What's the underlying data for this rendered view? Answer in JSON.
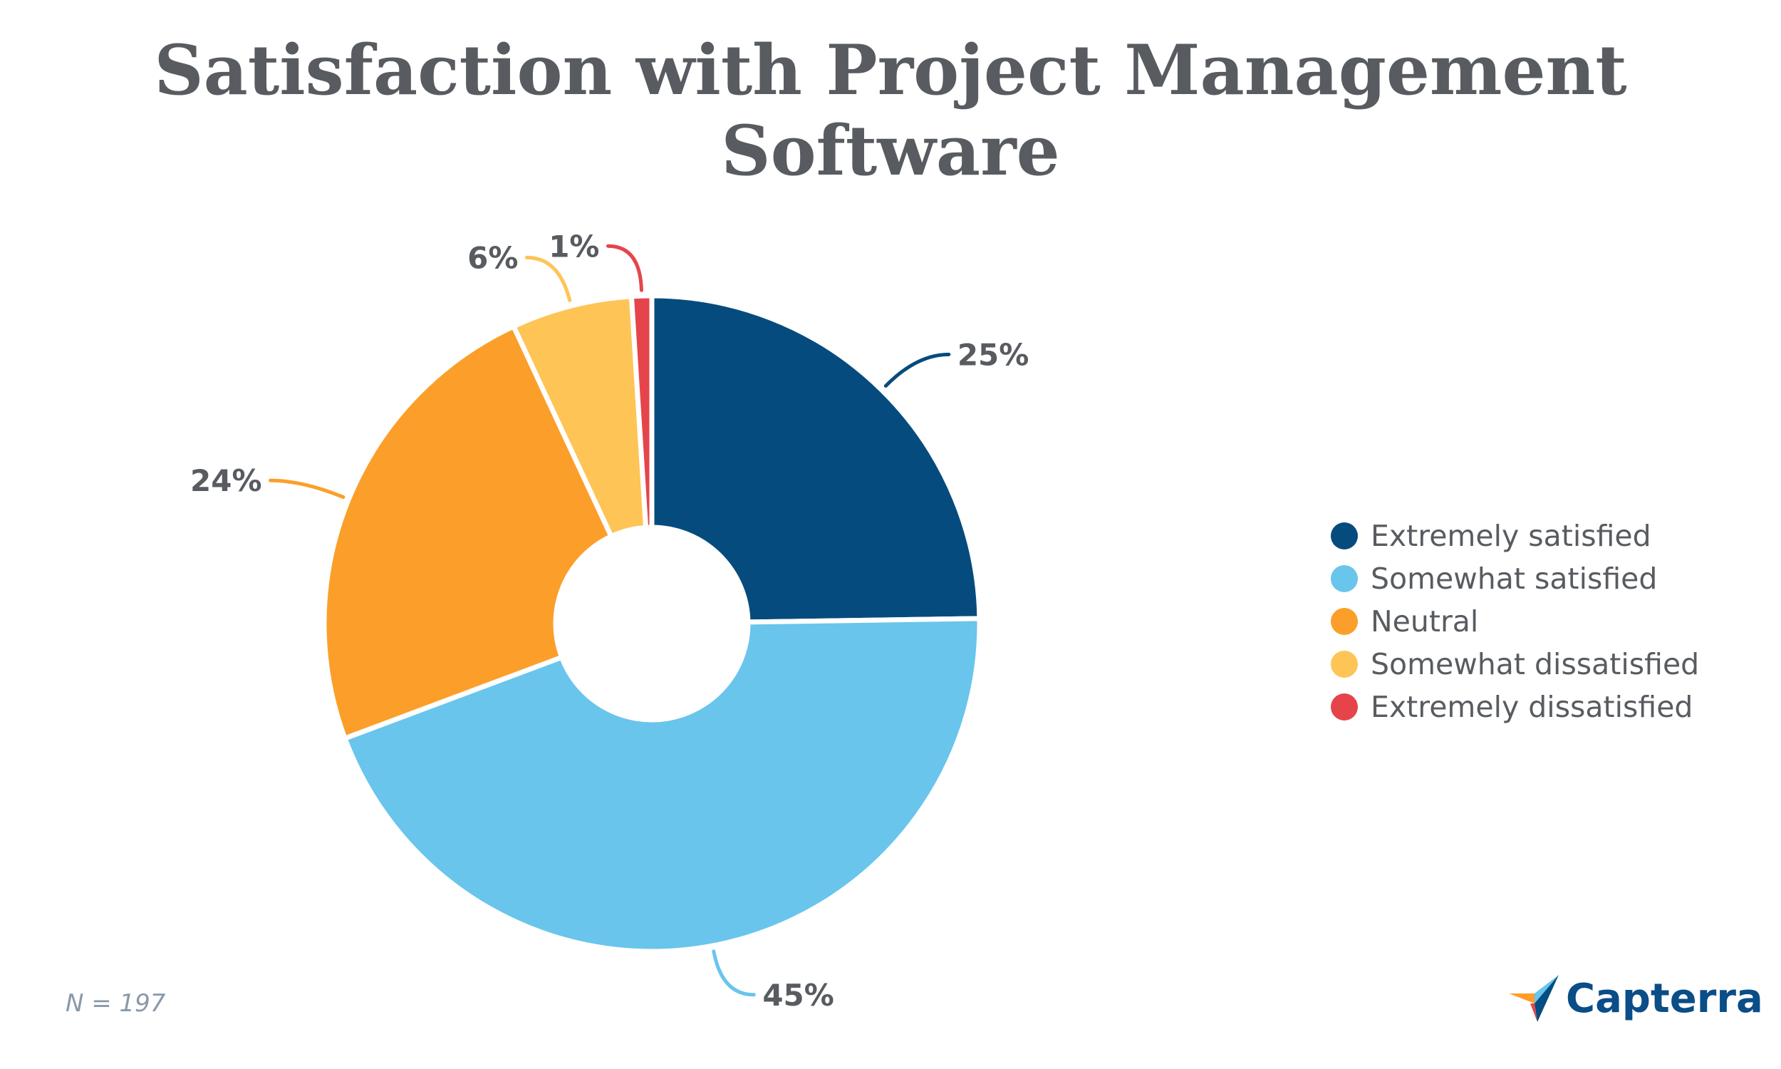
{
  "chart_data": {
    "type": "pie",
    "title": "Satisfaction with Project Management Software",
    "categories": [
      "Extremely satisfied",
      "Somewhat satisfied",
      "Neutral",
      "Somewhat dissatisfied",
      "Extremely dissatisfied"
    ],
    "values": [
      25,
      45,
      24,
      6,
      1
    ],
    "labels": [
      "25%",
      "45%",
      "24%",
      "6%",
      "1%"
    ],
    "colors": [
      "#064b7e",
      "#69c5ec",
      "#fb9f2a",
      "#fec455",
      "#e5454a"
    ],
    "donut": true,
    "legend_position": "right"
  },
  "note": "N = 197",
  "brand": {
    "name": "Capterra",
    "icon": "capterra-logo-icon",
    "colors": [
      "#ff9d28",
      "#68c5ed",
      "#044d80",
      "#e54747"
    ]
  }
}
